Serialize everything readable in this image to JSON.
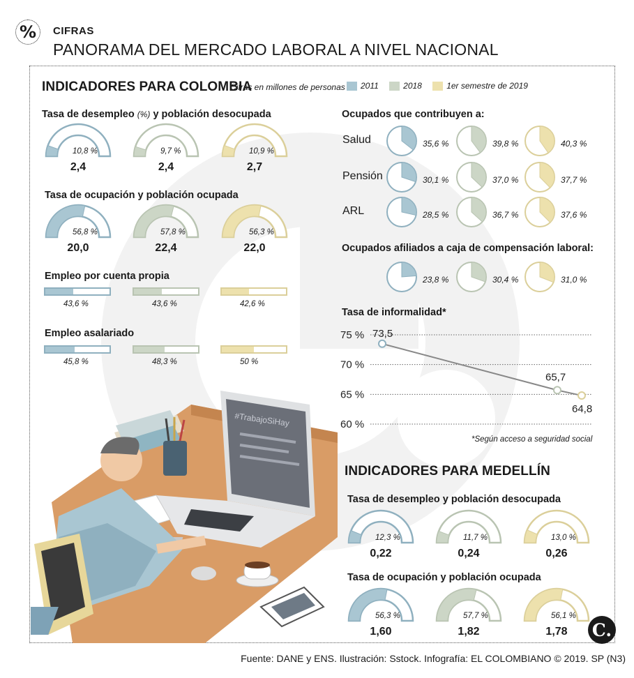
{
  "header": {
    "badge": "%",
    "section": "CIFRAS",
    "title": "PANORAMA DEL MERCADO LABORAL A NIVEL NACIONAL"
  },
  "colors": {
    "y2011": "#a9c6d2",
    "y2018": "#ccd6c6",
    "y2019": "#ede1ad",
    "s2011": "#8fb0bf",
    "s2018": "#b9c4b2",
    "s2019": "#dbcf9a"
  },
  "colombia": {
    "title": "INDICADORES PARA COLOMBIA",
    "note": "Cifras en millones de personas",
    "legend": [
      "2011",
      "2018",
      "1er semestre de 2019"
    ]
  },
  "chart_data": [
    {
      "type": "gauge",
      "id": "col-desempleo",
      "title": "Tasa de desempleo",
      "title_unit": "(%)",
      "title_rest": "y población desocupada",
      "series": [
        {
          "name": "2011",
          "rate_label": "10,8 %",
          "rate": 10.8,
          "value": "2,4"
        },
        {
          "name": "2018",
          "rate_label": "9,7 %",
          "rate": 9.7,
          "value": "2,4"
        },
        {
          "name": "1er semestre de 2019",
          "rate_label": "10,9 %",
          "rate": 10.9,
          "value": "2,7"
        }
      ]
    },
    {
      "type": "gauge",
      "id": "col-ocupacion",
      "title": "Tasa de ocupación y población ocupada",
      "series": [
        {
          "name": "2011",
          "rate_label": "56,8 %",
          "rate": 56.8,
          "value": "20,0"
        },
        {
          "name": "2018",
          "rate_label": "57,8 %",
          "rate": 57.8,
          "value": "22,4"
        },
        {
          "name": "1er semestre de 2019",
          "rate_label": "56,3 %",
          "rate": 56.3,
          "value": "22,0"
        }
      ]
    },
    {
      "type": "bar",
      "id": "col-cuenta-propia",
      "title": "Empleo por cuenta propia",
      "series": [
        {
          "name": "2011",
          "label": "43,6 %",
          "value": 43.6
        },
        {
          "name": "2018",
          "label": "43,6 %",
          "value": 43.6
        },
        {
          "name": "1er semestre de 2019",
          "label": "42,6 %",
          "value": 42.6
        }
      ]
    },
    {
      "type": "bar",
      "id": "col-asalariado",
      "title": "Empleo asalariado",
      "series": [
        {
          "name": "2011",
          "label": "45,8 %",
          "value": 45.8
        },
        {
          "name": "2018",
          "label": "48,3 %",
          "value": 48.3
        },
        {
          "name": "1er semestre de 2019",
          "label": "50 %",
          "value": 50
        }
      ]
    },
    {
      "type": "pie",
      "id": "col-contribuyen",
      "title": "Ocupados que contribuyen a:",
      "rows": [
        {
          "label": "Salud",
          "values": [
            35.6,
            39.8,
            40.3
          ],
          "labels": [
            "35,6 %",
            "39,8 %",
            "40,3 %"
          ]
        },
        {
          "label": "Pensión",
          "values": [
            30.1,
            37.0,
            37.7
          ],
          "labels": [
            "30,1 %",
            "37,0 %",
            "37,7 %"
          ]
        },
        {
          "label": "ARL",
          "values": [
            28.5,
            36.7,
            37.6
          ],
          "labels": [
            "28,5 %",
            "36,7 %",
            "37,6 %"
          ]
        }
      ]
    },
    {
      "type": "pie",
      "id": "col-caja",
      "title": "Ocupados afiliados a caja de compensación laboral:",
      "rows": [
        {
          "label": "",
          "values": [
            23.8,
            30.4,
            31.0
          ],
          "labels": [
            "23,8 %",
            "30,4 %",
            "31,0 %"
          ]
        }
      ]
    },
    {
      "type": "line",
      "id": "col-informalidad",
      "title": "Tasa de informalidad*",
      "x": [
        "2011",
        "2018",
        "1er semestre de 2019"
      ],
      "values": [
        73.5,
        65.7,
        64.8
      ],
      "value_labels": [
        "73,5",
        "65,7",
        "64,8"
      ],
      "ylim": [
        60,
        75
      ],
      "yticks": [
        {
          "v": 75,
          "label": "75 %"
        },
        {
          "v": 70,
          "label": "70 %"
        },
        {
          "v": 65,
          "label": "65 %"
        },
        {
          "v": 60,
          "label": "60 %"
        }
      ],
      "note": "*Según acceso a seguridad social",
      "grid": true
    },
    {
      "type": "gauge",
      "id": "med-desempleo",
      "title": "Tasa de desempleo y población desocupada",
      "series": [
        {
          "name": "2011",
          "rate_label": "12,3 %",
          "rate": 12.3,
          "value": "0,22"
        },
        {
          "name": "2018",
          "rate_label": "11,7 %",
          "rate": 11.7,
          "value": "0,24"
        },
        {
          "name": "1er semestre de 2019",
          "rate_label": "13,0 %",
          "rate": 13.0,
          "value": "0,26"
        }
      ]
    },
    {
      "type": "gauge",
      "id": "med-ocupacion",
      "title": "Tasa de ocupación y población ocupada",
      "series": [
        {
          "name": "2011",
          "rate_label": "56,3 %",
          "rate": 56.3,
          "value": "1,60"
        },
        {
          "name": "2018",
          "rate_label": "57,7 %",
          "rate": 57.7,
          "value": "1,82"
        },
        {
          "name": "1er semestre de 2019",
          "rate_label": "56,1 %",
          "rate": 56.1,
          "value": "1,78"
        }
      ]
    }
  ],
  "medellin": {
    "title": "INDICADORES PARA MEDELLÍN"
  },
  "illustration": {
    "screen_text": "#TrabajoSiHay"
  },
  "footer": "Fuente: DANE y ENS. Ilustración: Sstock.  Infografía: EL COLOMBIANO © 2019. SP (N3)",
  "logo": "C."
}
